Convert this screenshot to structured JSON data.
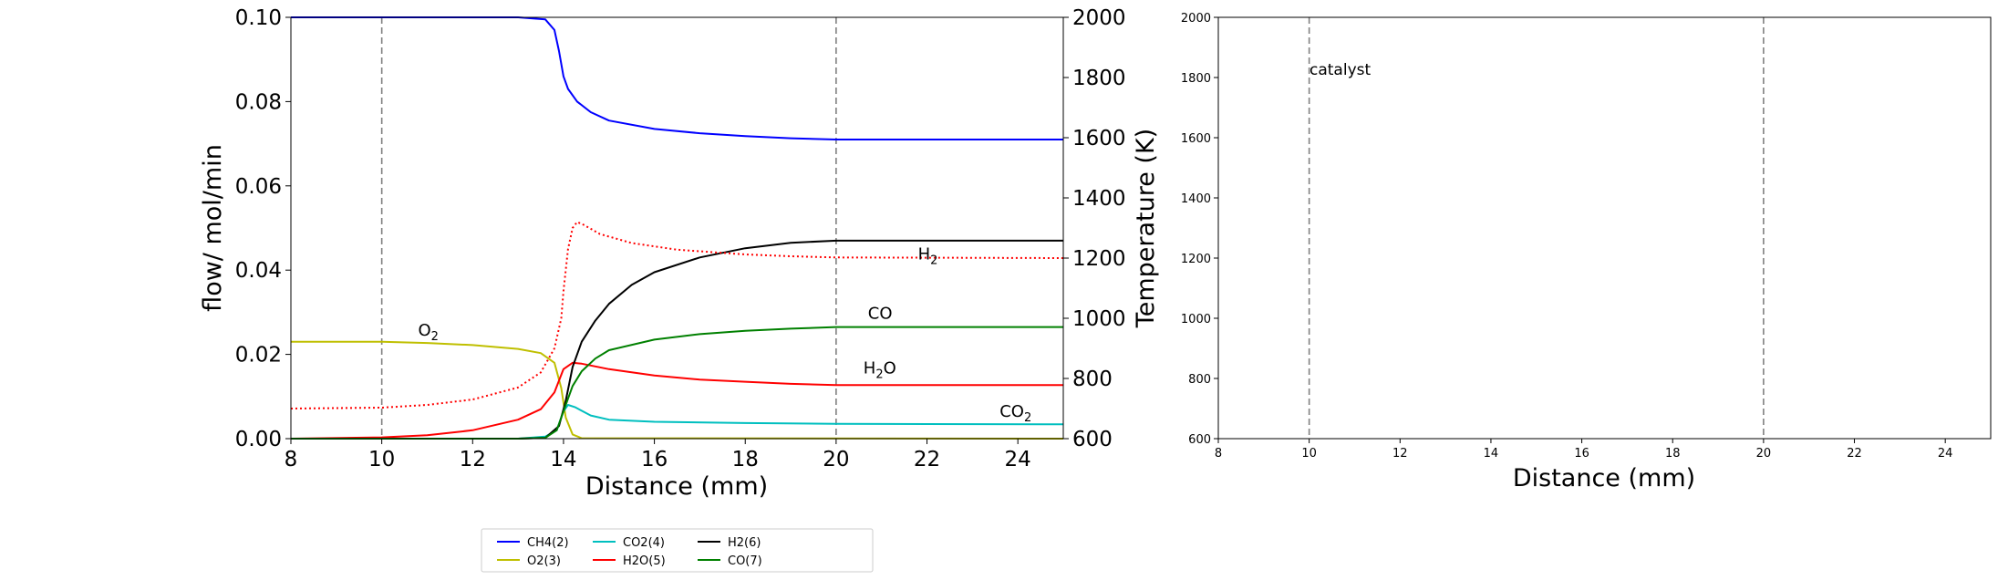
{
  "figure": {
    "left": {
      "type": "line",
      "xlabel": "Distance (mm)",
      "ylabel_left": "flow/ mol/min",
      "ylabel_right": "Temperature (K)",
      "xlim": [
        8,
        25
      ],
      "ylim_left": [
        0,
        0.1
      ],
      "ylim_right": [
        600,
        2000
      ],
      "xticks": [
        "8",
        "10",
        "12",
        "14",
        "16",
        "18",
        "20",
        "22",
        "24"
      ],
      "yticks_left": [
        "0.00",
        "0.02",
        "0.04",
        "0.06",
        "0.08",
        "0.10"
      ],
      "yticks_right": [
        "600",
        "800",
        "1000",
        "1200",
        "1400",
        "1600",
        "1800",
        "2000"
      ],
      "catalyst_bounds": [
        10,
        20
      ],
      "annotations": [
        {
          "base": "O",
          "sub": "2",
          "color": "#bfbf00",
          "x": 10.8,
          "y": 0.0245
        },
        {
          "base": "H",
          "sub": "2",
          "color": "#000000",
          "x": 21.8,
          "y": 0.0425
        },
        {
          "base": "CO",
          "sub": "",
          "color": "#008000",
          "x": 20.7,
          "y": 0.0285
        },
        {
          "base": "H",
          "sub": "2",
          "tail": "O",
          "color": "#ff0000",
          "x": 20.6,
          "y": 0.0155
        },
        {
          "base": "CO",
          "sub": "2",
          "color": "#00bfbf",
          "x": 23.6,
          "y": 0.0052
        }
      ]
    },
    "right": {
      "xlabel": "Distance (mm)",
      "xlim": [
        8,
        25
      ],
      "ylim": [
        600,
        2000
      ],
      "xticks": [
        "8",
        "10",
        "12",
        "14",
        "16",
        "18",
        "20",
        "22",
        "24"
      ],
      "yticks": [
        "600",
        "800",
        "1000",
        "1200",
        "1400",
        "1600",
        "1800",
        "2000"
      ],
      "catalyst_bounds": [
        10,
        20
      ],
      "catalyst_label": "catalyst"
    },
    "legend": {
      "entries": [
        {
          "label": "CH4(2)",
          "color": "#0000ff"
        },
        {
          "label": "O2(3)",
          "color": "#bfbf00"
        },
        {
          "label": "CO2(4)",
          "color": "#00bfbf"
        },
        {
          "label": "H2O(5)",
          "color": "#ff0000"
        },
        {
          "label": "H2(6)",
          "color": "#000000"
        },
        {
          "label": "CO(7)",
          "color": "#008000"
        }
      ]
    }
  },
  "chart_data": {
    "type": "line",
    "x_unit": "Distance (mm)",
    "series": [
      {
        "name": "CH4(2)",
        "color": "#0000ff",
        "axis": "left",
        "points": [
          [
            8,
            0.1
          ],
          [
            13,
            0.1
          ],
          [
            13.6,
            0.0995
          ],
          [
            13.8,
            0.097
          ],
          [
            13.9,
            0.092
          ],
          [
            14.0,
            0.086
          ],
          [
            14.1,
            0.083
          ],
          [
            14.3,
            0.08
          ],
          [
            14.6,
            0.0775
          ],
          [
            15,
            0.0755
          ],
          [
            16,
            0.0735
          ],
          [
            17,
            0.0725
          ],
          [
            18,
            0.0718
          ],
          [
            19,
            0.0713
          ],
          [
            20,
            0.071
          ],
          [
            25,
            0.071
          ]
        ]
      },
      {
        "name": "O2(3)",
        "color": "#bfbf00",
        "axis": "left",
        "points": [
          [
            8,
            0.023
          ],
          [
            10,
            0.023
          ],
          [
            11,
            0.0227
          ],
          [
            12,
            0.0222
          ],
          [
            13,
            0.0213
          ],
          [
            13.5,
            0.0203
          ],
          [
            13.8,
            0.018
          ],
          [
            13.95,
            0.012
          ],
          [
            14.05,
            0.005
          ],
          [
            14.2,
            0.001
          ],
          [
            14.4,
            0.0001
          ],
          [
            25,
            0.0
          ]
        ]
      },
      {
        "name": "CO2(4)",
        "color": "#00bfbf",
        "axis": "left",
        "points": [
          [
            8,
            0.0
          ],
          [
            13,
            0.0
          ],
          [
            13.6,
            0.0005
          ],
          [
            13.85,
            0.002
          ],
          [
            14.0,
            0.0065
          ],
          [
            14.1,
            0.008
          ],
          [
            14.25,
            0.0075
          ],
          [
            14.6,
            0.0055
          ],
          [
            15,
            0.0045
          ],
          [
            16,
            0.004
          ],
          [
            18,
            0.0037
          ],
          [
            20,
            0.0035
          ],
          [
            25,
            0.0034
          ]
        ]
      },
      {
        "name": "H2O(5)",
        "color": "#ff0000",
        "axis": "left",
        "points": [
          [
            8,
            0.0
          ],
          [
            10,
            0.0003
          ],
          [
            11,
            0.0008
          ],
          [
            12,
            0.002
          ],
          [
            13,
            0.0045
          ],
          [
            13.5,
            0.007
          ],
          [
            13.8,
            0.011
          ],
          [
            14.0,
            0.0165
          ],
          [
            14.2,
            0.018
          ],
          [
            14.4,
            0.0178
          ],
          [
            15,
            0.0165
          ],
          [
            16,
            0.015
          ],
          [
            17,
            0.014
          ],
          [
            18,
            0.0135
          ],
          [
            19,
            0.013
          ],
          [
            20,
            0.0127
          ],
          [
            25,
            0.0127
          ]
        ]
      },
      {
        "name": "H2(6)",
        "color": "#000000",
        "axis": "left",
        "points": [
          [
            8,
            0.0
          ],
          [
            13,
            0.0
          ],
          [
            13.6,
            0.0002
          ],
          [
            13.9,
            0.003
          ],
          [
            14.05,
            0.009
          ],
          [
            14.2,
            0.017
          ],
          [
            14.4,
            0.023
          ],
          [
            14.7,
            0.028
          ],
          [
            15,
            0.032
          ],
          [
            15.5,
            0.0365
          ],
          [
            16,
            0.0395
          ],
          [
            17,
            0.043
          ],
          [
            18,
            0.0452
          ],
          [
            19,
            0.0465
          ],
          [
            20,
            0.047
          ],
          [
            25,
            0.047
          ]
        ]
      },
      {
        "name": "CO(7)",
        "color": "#008000",
        "axis": "left",
        "points": [
          [
            8,
            0.0
          ],
          [
            13,
            0.0
          ],
          [
            13.6,
            0.0002
          ],
          [
            13.85,
            0.002
          ],
          [
            14.05,
            0.008
          ],
          [
            14.2,
            0.0125
          ],
          [
            14.4,
            0.016
          ],
          [
            14.7,
            0.019
          ],
          [
            15,
            0.021
          ],
          [
            16,
            0.0235
          ],
          [
            17,
            0.0248
          ],
          [
            18,
            0.0256
          ],
          [
            19,
            0.0261
          ],
          [
            20,
            0.0265
          ],
          [
            25,
            0.0265
          ]
        ]
      },
      {
        "name": "Temperature",
        "color": "#ff0000",
        "axis": "right",
        "dashed": true,
        "points": [
          [
            8,
            700
          ],
          [
            10,
            703
          ],
          [
            11,
            712
          ],
          [
            12,
            730
          ],
          [
            13,
            770
          ],
          [
            13.5,
            820
          ],
          [
            13.8,
            900
          ],
          [
            13.95,
            1000
          ],
          [
            14.0,
            1090
          ],
          [
            14.1,
            1230
          ],
          [
            14.2,
            1300
          ],
          [
            14.3,
            1320
          ],
          [
            14.45,
            1310
          ],
          [
            14.8,
            1280
          ],
          [
            15.5,
            1250
          ],
          [
            16.5,
            1228
          ],
          [
            18,
            1212
          ],
          [
            19,
            1206
          ],
          [
            20,
            1202
          ],
          [
            25,
            1200
          ]
        ]
      }
    ]
  }
}
